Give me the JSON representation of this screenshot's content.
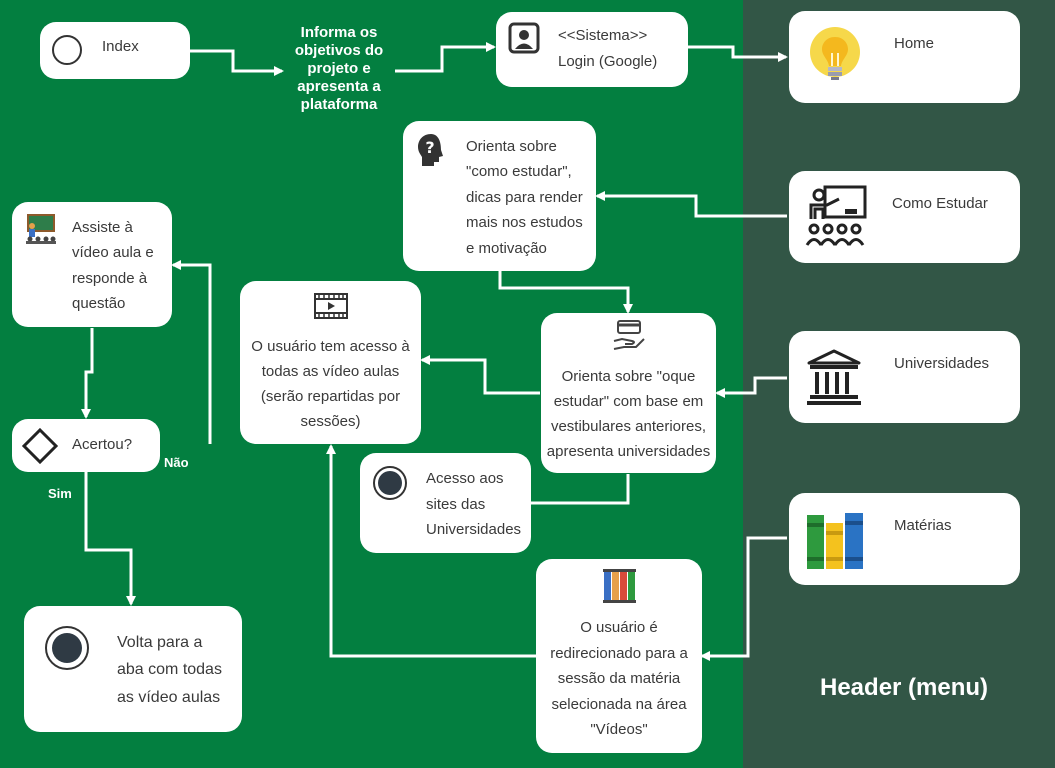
{
  "nodes": {
    "index": "Index",
    "objectives": [
      "Informa os",
      "objetivos do",
      "projeto e",
      "apresenta  a",
      "plataforma"
    ],
    "login": [
      "<<Sistema>>",
      "Login (Google)"
    ],
    "home": "Home",
    "como_estudar_menu": "Como Estudar",
    "universidades_menu": "Universidades",
    "materias_menu": "Matérias",
    "orienta_estudar": [
      "Orienta sobre",
      "\"como estudar\",",
      "dicas para render",
      "mais nos estudos",
      "e motivação"
    ],
    "orienta_oque": [
      "Orienta sobre \"oque",
      "estudar\" com base em",
      "vestibulares anteriores,",
      "apresenta universidades"
    ],
    "acesso_sites": [
      "Acesso aos",
      "sites das",
      "Universidades"
    ],
    "video_aulas": [
      "O usuário tem acesso à",
      "todas as vídeo aulas",
      "(serão repartidas por",
      "sessões)"
    ],
    "assiste": [
      "Assiste à",
      "vídeo aula e",
      "responde à",
      "questão"
    ],
    "acertou": "Acertou?",
    "volta": [
      "Volta para a",
      "aba com todas",
      "as vídeo aulas"
    ],
    "redirecionado": [
      "O usuário é",
      "redirecionado para a",
      "sessão da matéria",
      "selecionada na área",
      "\"Vídeos\""
    ]
  },
  "labels": {
    "nao": "Não",
    "sim": "Sim"
  },
  "header_title": "Header (menu)",
  "colors": {
    "background": "#037f40",
    "header_panel": "#325646",
    "node": "#ffffff",
    "edge": "#ffffff",
    "text": "#3a3a3a"
  },
  "icons": {
    "login": "user-icon",
    "home": "lightbulb-icon",
    "como_estudar": "teacher-classroom-icon",
    "orienta_estudar": "head-question-icon",
    "universidades": "university-building-icon",
    "materias": "books-icon",
    "orienta_oque": "card-hand-icon",
    "video_aulas": "video-film-icon",
    "assiste": "classroom-board-icon",
    "redirecionado": "books-colored-icon"
  }
}
